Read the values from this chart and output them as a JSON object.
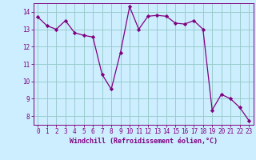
{
  "x": [
    0,
    1,
    2,
    3,
    4,
    5,
    6,
    7,
    8,
    9,
    10,
    11,
    12,
    13,
    14,
    15,
    16,
    17,
    18,
    19,
    20,
    21,
    22,
    23
  ],
  "y": [
    13.7,
    13.2,
    13.0,
    13.5,
    12.8,
    12.65,
    12.55,
    10.4,
    9.55,
    11.65,
    14.3,
    13.0,
    13.75,
    13.8,
    13.75,
    13.35,
    13.3,
    13.5,
    13.0,
    8.35,
    9.25,
    9.0,
    8.5,
    7.75
  ],
  "line_color": "#800080",
  "marker": "D",
  "marker_size": 2.2,
  "bg_color": "#cceeff",
  "grid_color": "#99cccc",
  "xlabel": "Windchill (Refroidissement éolien,°C)",
  "xlabel_color": "#800080",
  "xlim": [
    -0.5,
    23.5
  ],
  "ylim": [
    7.5,
    14.5
  ],
  "yticks": [
    8,
    9,
    10,
    11,
    12,
    13,
    14
  ],
  "xticks": [
    0,
    1,
    2,
    3,
    4,
    5,
    6,
    7,
    8,
    9,
    10,
    11,
    12,
    13,
    14,
    15,
    16,
    17,
    18,
    19,
    20,
    21,
    22,
    23
  ],
  "tick_color": "#800080",
  "font_family": "monospace",
  "tick_fontsize": 5.5,
  "xlabel_fontsize": 6.0,
  "linewidth": 0.9
}
